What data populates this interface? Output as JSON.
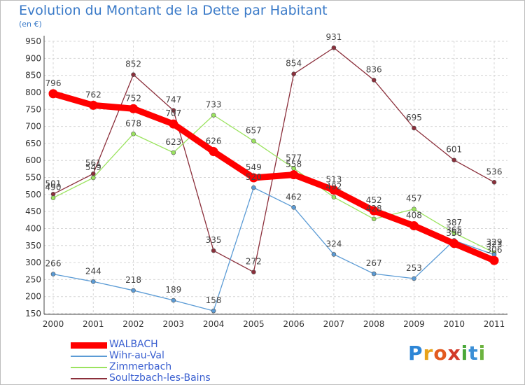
{
  "chart_data": {
    "type": "line",
    "title": "Evolution du Montant de la Dette par Habitant",
    "ylabel": "(en €)",
    "xlabel": "",
    "x": [
      "2000",
      "2001",
      "2002",
      "2003",
      "2004",
      "2005",
      "2006",
      "2007",
      "2008",
      "2009",
      "2010",
      "2011"
    ],
    "ylim": [
      150,
      950
    ],
    "yticks": [
      150,
      200,
      250,
      300,
      350,
      400,
      450,
      500,
      550,
      600,
      650,
      700,
      750,
      800,
      850,
      900,
      950
    ],
    "grid": true,
    "legend_position": "bottom-left",
    "series": [
      {
        "name": "WALBACH",
        "color": "#ff0000",
        "values": [
          796,
          762,
          752,
          707,
          626,
          549,
          558,
          513,
          452,
          408,
          356,
          306
        ]
      },
      {
        "name": "Wihr-au-Val",
        "color": "#5b9bd5",
        "values": [
          266,
          244,
          218,
          189,
          158,
          520,
          462,
          324,
          267,
          253,
          365,
          323
        ]
      },
      {
        "name": "Zimmerbach",
        "color": "#9be35f",
        "values": [
          490,
          549,
          678,
          623,
          733,
          657,
          577,
          492,
          428,
          457,
          387,
          329
        ]
      },
      {
        "name": "Soultzbach-les-Bains",
        "color": "#8b2f3b",
        "values": [
          501,
          561,
          852,
          747,
          335,
          272,
          854,
          931,
          836,
          695,
          601,
          536
        ]
      }
    ],
    "data_labels": [
      [
        796,
        762,
        752,
        707,
        626,
        549,
        558,
        513,
        452,
        408,
        356,
        306
      ],
      [
        266,
        244,
        218,
        189,
        158,
        520,
        462,
        324,
        267,
        253,
        365,
        323
      ],
      [
        490,
        549,
        678,
        623,
        733,
        657,
        577,
        492,
        428,
        457,
        387,
        329
      ],
      [
        501,
        561,
        852,
        747,
        335,
        272,
        854,
        931,
        836,
        695,
        601,
        536
      ]
    ]
  },
  "logo": {
    "letters": [
      "P",
      "r",
      "o",
      "x",
      "i",
      "t",
      "i"
    ],
    "colors": [
      "#2e86d6",
      "#e8a21a",
      "#e35a1f",
      "#d23a2a",
      "#4aa83a",
      "#3b8fd6",
      "#6cb33f"
    ]
  }
}
